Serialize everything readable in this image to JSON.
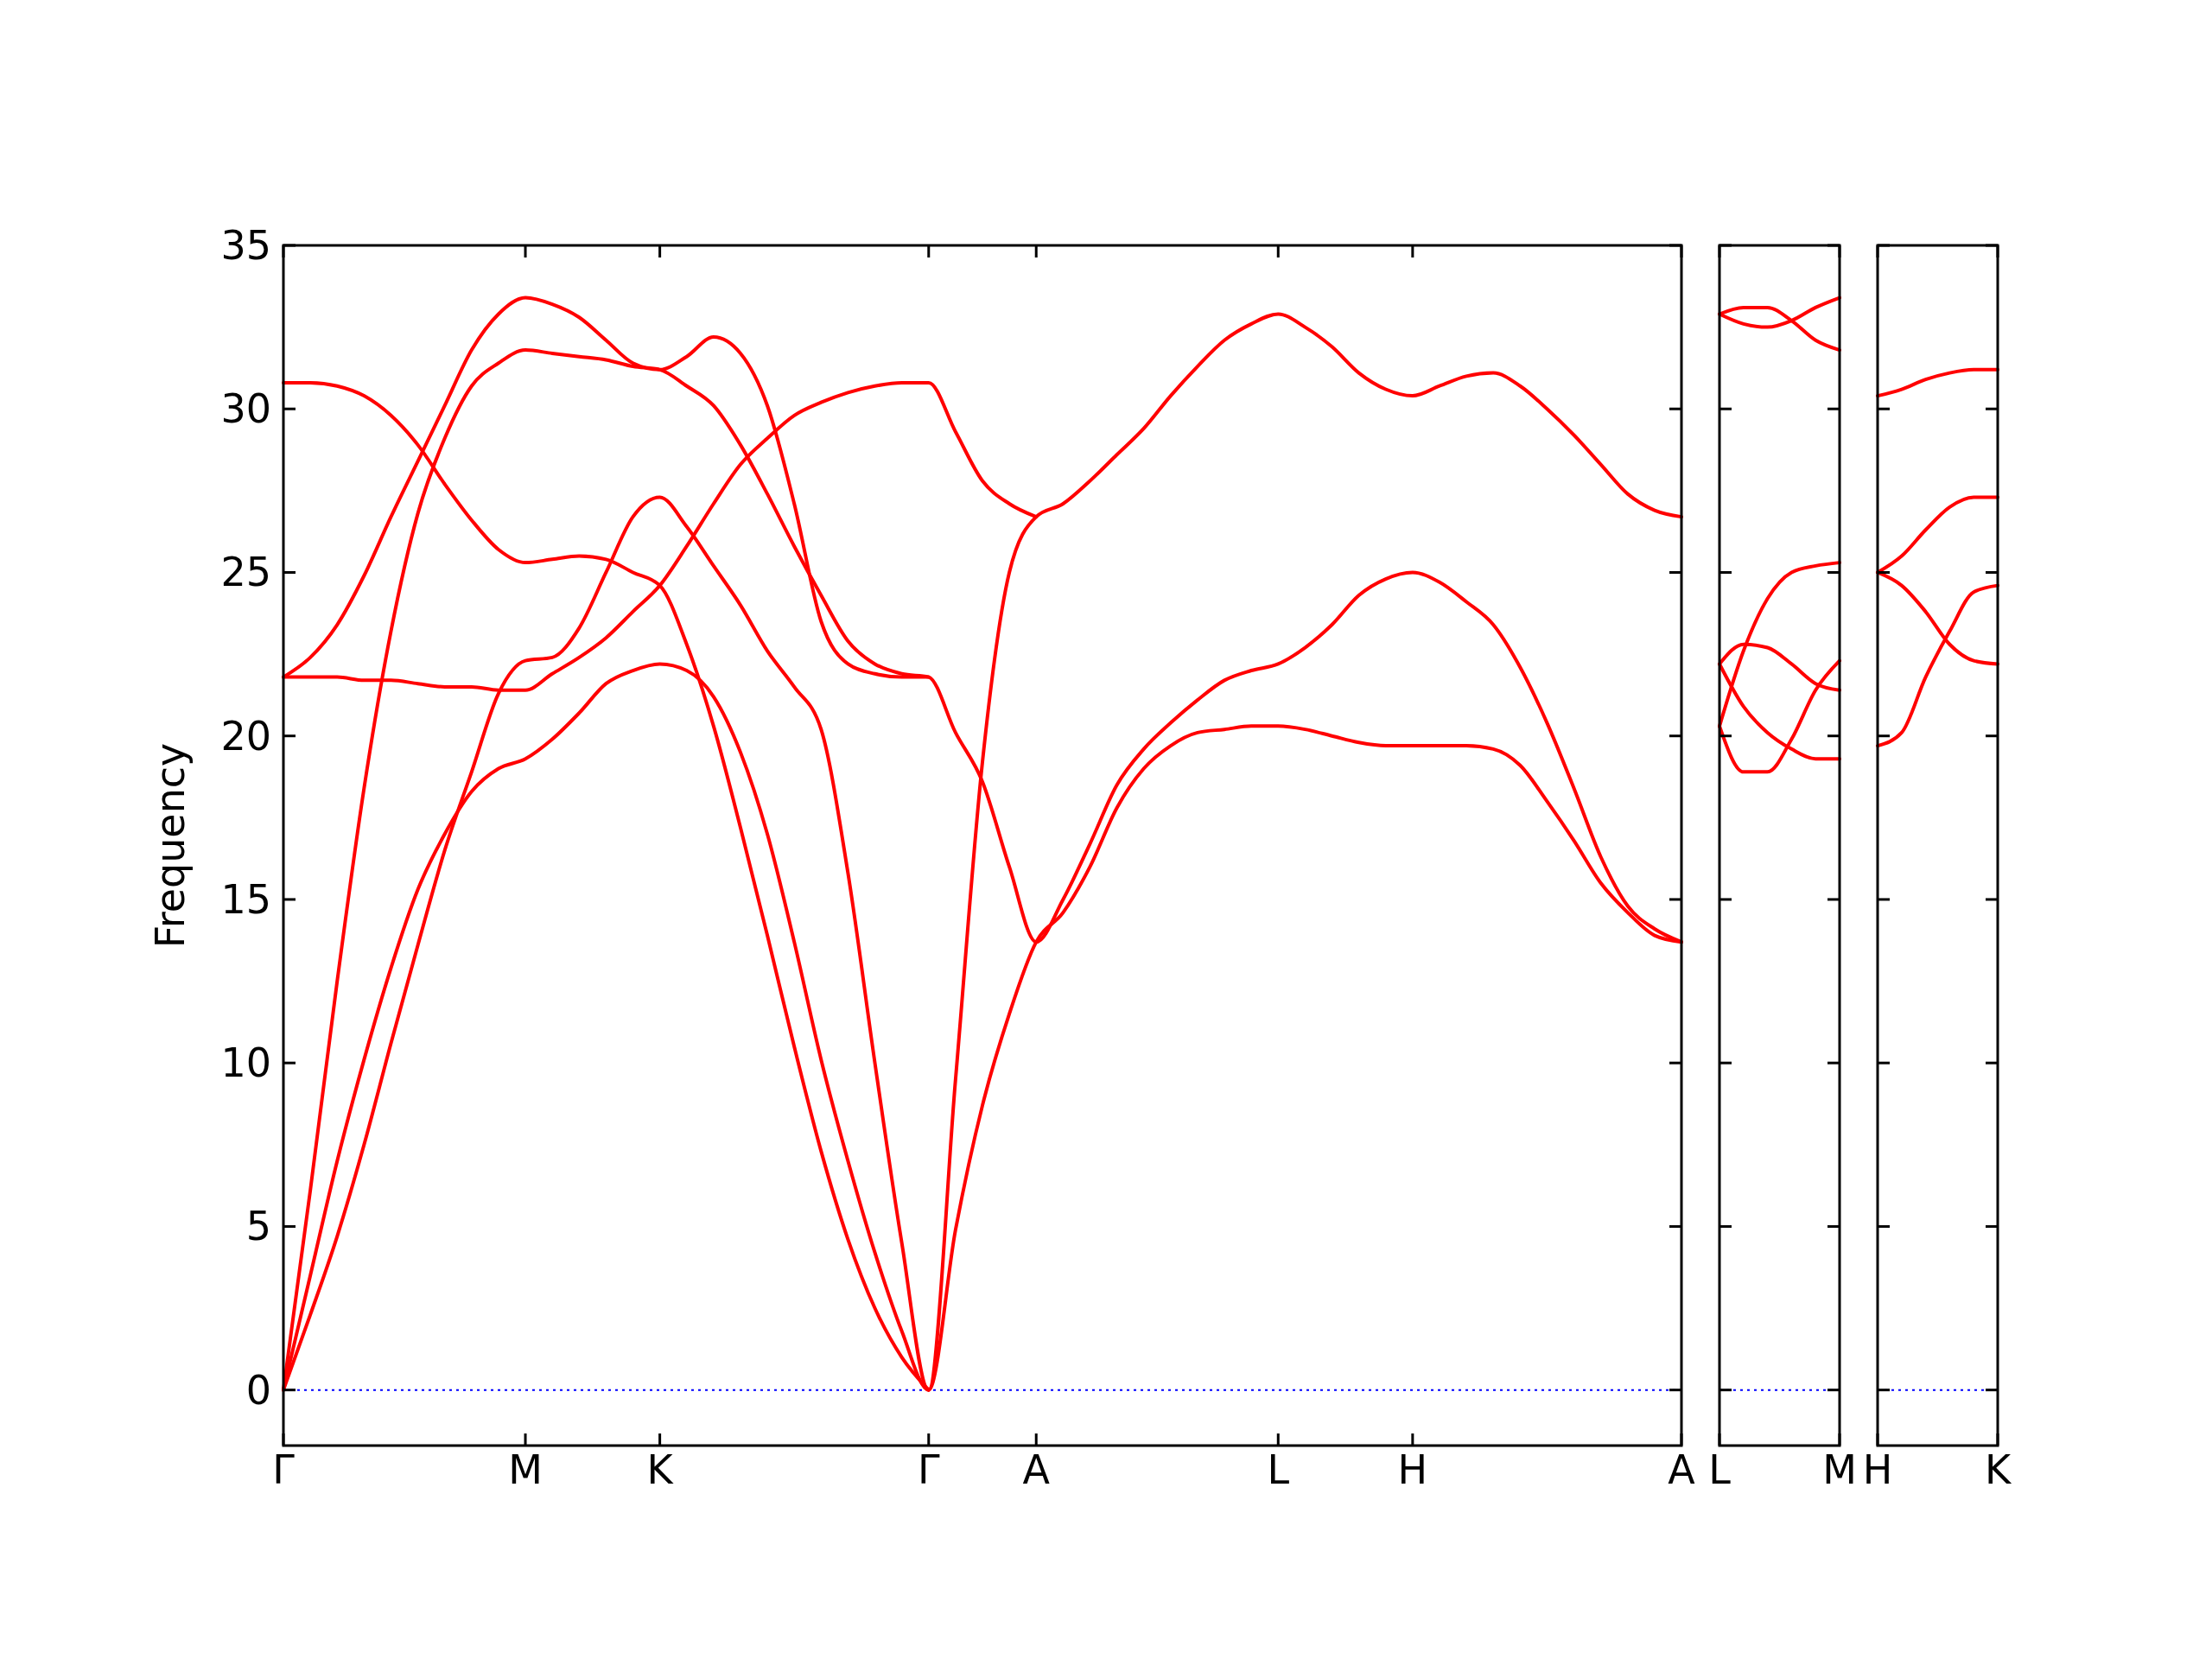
{
  "chart_data": [
    {
      "type": "line",
      "ylabel": "Frequency",
      "ylim": [
        -1.7,
        35
      ],
      "yticks": [
        0,
        5,
        10,
        15,
        20,
        25,
        30,
        35
      ],
      "categories": [
        "Γ",
        null,
        null,
        null,
        null,
        null,
        null,
        null,
        null,
        "M",
        null,
        null,
        null,
        null,
        "K",
        null,
        null,
        null,
        null,
        null,
        null,
        null,
        null,
        null,
        "Γ",
        null,
        null,
        null,
        "A",
        null,
        null,
        null,
        null,
        null,
        null,
        null,
        null,
        "L",
        null,
        null,
        null,
        null,
        "H",
        null,
        null,
        null,
        null,
        null,
        null,
        null,
        null,
        null,
        "A"
      ],
      "grid": false,
      "line_style": "solid",
      "ref_lines": [
        {
          "axis": "y",
          "value": 0,
          "color": "#0000ff",
          "line_style": "dotted"
        }
      ],
      "series": [
        {
          "color": "#ff0000",
          "values": [
            0,
            3.5,
            7,
            10.1,
            12.9,
            15.3,
            17,
            18.3,
            19,
            19.3,
            19.9,
            20.7,
            21.6,
            22,
            22.2,
            22,
            21.2,
            19.5,
            17,
            13.7,
            10.1,
            7,
            4.2,
            1.8,
            0,
            4.9,
            8.7,
            11.5,
            13.7,
            14.6,
            16,
            17.8,
            19,
            19.7,
            20.1,
            20.2,
            20.3,
            20.3,
            20.2,
            20,
            19.8,
            19.7,
            19.7,
            19.7,
            19.7,
            19.6,
            19.1,
            18,
            16.8,
            15.5,
            14.6,
            13.9,
            13.7
          ]
        },
        {
          "color": "#ff0000",
          "values": [
            0,
            2.3,
            4.7,
            7.5,
            10.6,
            13.6,
            16.5,
            18.9,
            21.3,
            22.3,
            22.4,
            23.3,
            25,
            26.7,
            27.3,
            26.4,
            25.2,
            24,
            22.6,
            21.5,
            20.2,
            15.8,
            10,
            4.5,
            0,
            9.5,
            19.2,
            25,
            26.7,
            27.1,
            27.8,
            28.6,
            29.4,
            30.4,
            31.3,
            32.1,
            32.6,
            32.9,
            32.5,
            31.9,
            31.1,
            30.6,
            30.4,
            30.7,
            31,
            31.1,
            30.7,
            30,
            29.2,
            28.3,
            27.4,
            26.9,
            26.7
          ]
        },
        {
          "color": "#ff0000",
          "values": [
            0,
            6.1,
            12.5,
            18.4,
            23.2,
            26.8,
            29.1,
            30.7,
            31.4,
            31.8,
            31.7,
            31.6,
            31.5,
            31.3,
            31.2,
            30.7,
            30.1,
            28.9,
            27.4,
            25.8,
            24.3,
            22.9,
            22.2,
            21.9,
            21.8,
            20.1,
            18.6,
            16,
            13.7,
            15,
            16.7,
            18.5,
            19.6,
            20.4,
            21.1,
            21.7,
            22,
            22.2,
            22.7,
            23.4,
            24.3,
            24.8,
            25,
            24.7,
            24.1,
            23.4,
            22.1,
            20.4,
            18.4,
            16.3,
            14.8,
            14.1,
            13.7
          ]
        },
        {
          "color": "#ff0000",
          "values": [
            21.8,
            21.8,
            21.8,
            21.7,
            21.7,
            21.6,
            21.5,
            21.5,
            21.4,
            21.4,
            21.9,
            22.4,
            23,
            23.8,
            24.6,
            25.8,
            27.1,
            28.3,
            29.1,
            29.8,
            30.2,
            30.5,
            30.7,
            30.8,
            30.8,
            29.3,
            27.8,
            27.1,
            26.7,
            null,
            null,
            null,
            null,
            null,
            null,
            null,
            null,
            null,
            null,
            null,
            null,
            null,
            null,
            null,
            null,
            null,
            null,
            null,
            null,
            null,
            null,
            null,
            null
          ]
        },
        {
          "color": "#ff0000",
          "values": [
            21.8,
            22.4,
            23.4,
            24.9,
            26.7,
            28.4,
            30.1,
            31.8,
            32.9,
            33.4,
            33.2,
            32.8,
            32.1,
            31.4,
            31.2,
            31.6,
            32.2,
            31.7,
            30.1,
            27.1,
            23.5,
            22.2,
            21.9,
            21.8,
            21.8,
            null,
            null,
            null,
            null,
            null,
            null,
            null,
            null,
            null,
            null,
            null,
            null,
            null,
            null,
            null,
            null,
            null,
            null,
            null,
            null,
            null,
            null,
            null,
            null,
            null,
            null,
            null,
            null
          ]
        },
        {
          "color": "#ff0000",
          "values": [
            30.8,
            30.8,
            30.7,
            30.4,
            29.8,
            28.9,
            27.7,
            26.6,
            25.7,
            25.3,
            25.4,
            25.5,
            25.4,
            25,
            24.6,
            22.8,
            20.3,
            17.2,
            13.9,
            10.5,
            7.3,
            4.6,
            2.5,
            1,
            0,
            null,
            null,
            null,
            null,
            null,
            null,
            null,
            null,
            null,
            null,
            null,
            null,
            null,
            null,
            null,
            null,
            null,
            null,
            null,
            null,
            null,
            null,
            null,
            null,
            null,
            null,
            null,
            null
          ]
        }
      ]
    },
    {
      "type": "line",
      "ylim": [
        -1.7,
        35
      ],
      "yticks": [
        0,
        5,
        10,
        15,
        20,
        25,
        30,
        35
      ],
      "tick_labels": "x",
      "categories": [
        "L",
        null,
        null,
        null,
        null,
        "M"
      ],
      "grid": false,
      "line_style": "solid",
      "ref_lines": [
        {
          "axis": "y",
          "value": 0,
          "color": "#0000ff",
          "line_style": "dotted"
        }
      ],
      "series": [
        {
          "color": "#ff0000",
          "values": [
            32.9,
            33.1,
            33.1,
            32.7,
            32.1,
            31.8
          ]
        },
        {
          "color": "#ff0000",
          "values": [
            32.9,
            32.6,
            32.5,
            32.7,
            33.1,
            33.4
          ]
        },
        {
          "color": "#ff0000",
          "values": [
            22.2,
            22.8,
            22.7,
            22.2,
            21.6,
            21.4
          ]
        },
        {
          "color": "#ff0000",
          "values": [
            22.2,
            20.9,
            20.1,
            19.6,
            19.3,
            19.3
          ]
        },
        {
          "color": "#ff0000",
          "values": [
            20.3,
            18.9,
            18.9,
            19.9,
            21.4,
            22.3
          ]
        },
        {
          "color": "#ff0000",
          "values": [
            20.3,
            22.6,
            24.2,
            25,
            25.2,
            25.3
          ]
        }
      ]
    },
    {
      "type": "line",
      "ylim": [
        -1.7,
        35
      ],
      "yticks": [
        0,
        5,
        10,
        15,
        20,
        25,
        30,
        35
      ],
      "tick_labels": "x",
      "categories": [
        "H",
        null,
        null,
        null,
        null,
        "K"
      ],
      "grid": false,
      "line_style": "solid",
      "ref_lines": [
        {
          "axis": "y",
          "value": 0,
          "color": "#0000ff",
          "line_style": "dotted"
        }
      ],
      "series": [
        {
          "color": "#ff0000",
          "values": [
            30.4,
            30.6,
            30.9,
            31.1,
            31.2,
            31.2
          ]
        },
        {
          "color": "#ff0000",
          "values": [
            25,
            25.5,
            26.3,
            27,
            27.3,
            27.3
          ]
        },
        {
          "color": "#ff0000",
          "values": [
            25,
            24.6,
            23.8,
            22.8,
            22.3,
            22.2
          ]
        },
        {
          "color": "#ff0000",
          "values": [
            19.7,
            20.1,
            21.8,
            23.2,
            24.4,
            24.6
          ]
        }
      ]
    }
  ]
}
